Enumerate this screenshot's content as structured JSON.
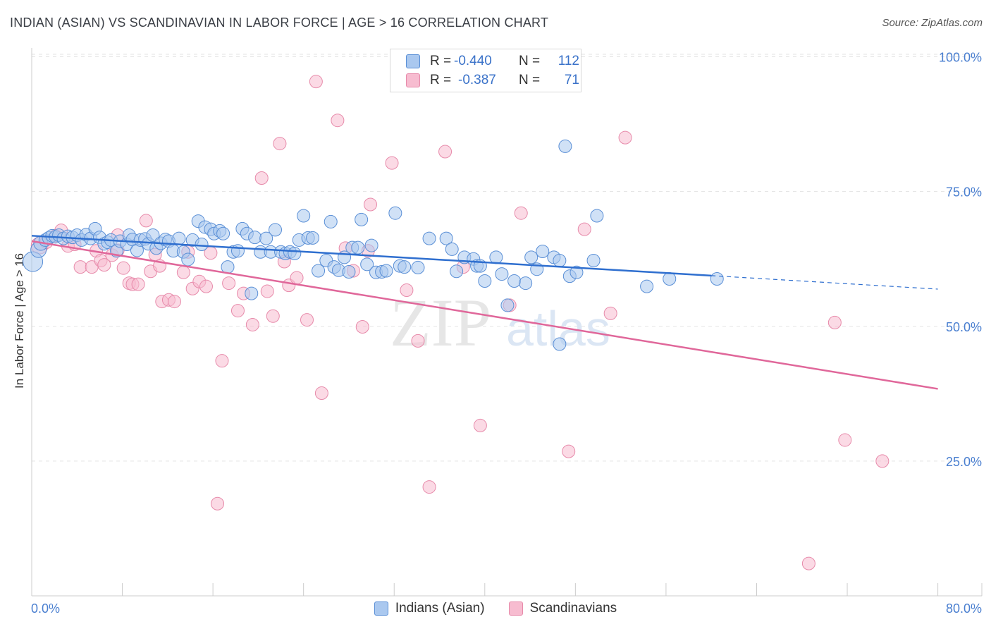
{
  "header": {
    "title": "INDIAN (ASIAN) VS SCANDINAVIAN IN LABOR FORCE | AGE > 16 CORRELATION CHART",
    "source": "Source: ZipAtlas.com"
  },
  "watermark": {
    "zip": "ZIP",
    "atlas": "atlas"
  },
  "legend": {
    "rows": [
      {
        "r_label": "R =",
        "r_value": "-0.440",
        "n_label": "N =",
        "n_value": "112"
      },
      {
        "r_label": "R =",
        "r_value": "-0.387",
        "n_label": "N =",
        "n_value": "71"
      }
    ],
    "bottom": [
      "Indians (Asian)",
      "Scandinavians"
    ]
  },
  "colors": {
    "indians_fill": "#aac8ef",
    "indians_stroke": "#5a8fd6",
    "indians_line": "#2f6fcf",
    "scand_fill": "#f7bcd0",
    "scand_stroke": "#e78aaa",
    "scand_line": "#e0679a",
    "tick_text": "#4a7fd0",
    "grid": "#e3e3e3"
  },
  "chart_data": {
    "type": "scatter",
    "title": "INDIAN (ASIAN) VS SCANDINAVIAN IN LABOR FORCE | AGE > 16 CORRELATION CHART",
    "xlabel": "",
    "ylabel": "In Labor Force | Age > 16",
    "xlim": [
      0,
      85
    ],
    "ylim": [
      0,
      103
    ],
    "x_tick_labels": [
      "0.0%",
      "80.0%"
    ],
    "y_ticks": [
      25,
      50,
      75,
      100
    ],
    "y_tick_labels": [
      "25.0%",
      "50.0%",
      "75.0%",
      "100.0%"
    ],
    "grid": "horizontal dashed",
    "legend_placement": "top-center",
    "series": [
      {
        "name": "Indians (Asian)",
        "r": -0.44,
        "n": 112,
        "trend": {
          "x": [
            0,
            60,
            80
          ],
          "y": [
            66.8,
            59.4,
            56.9
          ],
          "solid_until_x": 60
        },
        "points": [
          {
            "x": 0.1,
            "y": 62.0,
            "s": 14
          },
          {
            "x": 0.6,
            "y": 64.2,
            "s": 11
          },
          {
            "x": 0.8,
            "y": 65.4,
            "s": 10
          },
          {
            "x": 1.2,
            "y": 66.0,
            "s": 9
          },
          {
            "x": 1.5,
            "y": 66.4,
            "s": 9
          },
          {
            "x": 1.8,
            "y": 66.8,
            "s": 9
          },
          {
            "x": 2.1,
            "y": 66.6,
            "s": 9
          },
          {
            "x": 2.4,
            "y": 66.9,
            "s": 9
          },
          {
            "x": 2.8,
            "y": 66.3,
            "s": 9
          },
          {
            "x": 3.2,
            "y": 66.7,
            "s": 9
          },
          {
            "x": 3.6,
            "y": 66.5,
            "s": 9
          },
          {
            "x": 4.0,
            "y": 66.9,
            "s": 9
          },
          {
            "x": 4.4,
            "y": 66.0,
            "s": 9
          },
          {
            "x": 4.8,
            "y": 67.0,
            "s": 9
          },
          {
            "x": 5.2,
            "y": 66.3,
            "s": 9
          },
          {
            "x": 5.6,
            "y": 68.1,
            "s": 9
          },
          {
            "x": 6.0,
            "y": 66.5,
            "s": 9
          },
          {
            "x": 6.4,
            "y": 65.3,
            "s": 9
          },
          {
            "x": 6.7,
            "y": 65.6,
            "s": 9
          },
          {
            "x": 7.0,
            "y": 66.0,
            "s": 9
          },
          {
            "x": 7.5,
            "y": 64.0,
            "s": 9
          },
          {
            "x": 7.8,
            "y": 65.8,
            "s": 9
          },
          {
            "x": 8.4,
            "y": 65.2,
            "s": 9
          },
          {
            "x": 8.6,
            "y": 66.9,
            "s": 9
          },
          {
            "x": 8.9,
            "y": 66.1,
            "s": 9
          },
          {
            "x": 9.3,
            "y": 64.1,
            "s": 9
          },
          {
            "x": 9.6,
            "y": 66.0,
            "s": 9
          },
          {
            "x": 10.0,
            "y": 66.2,
            "s": 9
          },
          {
            "x": 10.3,
            "y": 65.3,
            "s": 9
          },
          {
            "x": 10.7,
            "y": 66.9,
            "s": 9
          },
          {
            "x": 11.0,
            "y": 64.5,
            "s": 9
          },
          {
            "x": 11.4,
            "y": 65.4,
            "s": 9
          },
          {
            "x": 11.8,
            "y": 66.1,
            "s": 9
          },
          {
            "x": 12.1,
            "y": 65.8,
            "s": 9
          },
          {
            "x": 12.5,
            "y": 64.0,
            "s": 9
          },
          {
            "x": 13.0,
            "y": 66.3,
            "s": 9
          },
          {
            "x": 13.4,
            "y": 63.8,
            "s": 9
          },
          {
            "x": 13.8,
            "y": 62.4,
            "s": 9
          },
          {
            "x": 14.2,
            "y": 66.0,
            "s": 9
          },
          {
            "x": 14.7,
            "y": 69.5,
            "s": 9
          },
          {
            "x": 15.0,
            "y": 65.2,
            "s": 9
          },
          {
            "x": 15.3,
            "y": 68.4,
            "s": 9
          },
          {
            "x": 15.8,
            "y": 68.0,
            "s": 9
          },
          {
            "x": 16.1,
            "y": 67.2,
            "s": 9
          },
          {
            "x": 16.6,
            "y": 67.7,
            "s": 9
          },
          {
            "x": 16.9,
            "y": 67.2,
            "s": 9
          },
          {
            "x": 17.3,
            "y": 61.0,
            "s": 9
          },
          {
            "x": 17.8,
            "y": 63.8,
            "s": 9
          },
          {
            "x": 18.2,
            "y": 64.0,
            "s": 9
          },
          {
            "x": 18.6,
            "y": 68.1,
            "s": 9
          },
          {
            "x": 19.0,
            "y": 67.2,
            "s": 9
          },
          {
            "x": 19.4,
            "y": 56.1,
            "s": 9
          },
          {
            "x": 19.7,
            "y": 66.5,
            "s": 9
          },
          {
            "x": 20.2,
            "y": 63.8,
            "s": 9
          },
          {
            "x": 20.7,
            "y": 66.3,
            "s": 9
          },
          {
            "x": 21.1,
            "y": 63.8,
            "s": 9
          },
          {
            "x": 21.5,
            "y": 67.9,
            "s": 9
          },
          {
            "x": 22.0,
            "y": 63.8,
            "s": 9
          },
          {
            "x": 22.4,
            "y": 63.5,
            "s": 9
          },
          {
            "x": 22.8,
            "y": 63.8,
            "s": 9
          },
          {
            "x": 23.2,
            "y": 63.5,
            "s": 9
          },
          {
            "x": 23.6,
            "y": 66.0,
            "s": 9
          },
          {
            "x": 24.0,
            "y": 70.5,
            "s": 9
          },
          {
            "x": 24.4,
            "y": 66.4,
            "s": 9
          },
          {
            "x": 24.8,
            "y": 66.4,
            "s": 9
          },
          {
            "x": 25.3,
            "y": 60.3,
            "s": 9
          },
          {
            "x": 26.0,
            "y": 62.2,
            "s": 9
          },
          {
            "x": 26.4,
            "y": 69.4,
            "s": 9
          },
          {
            "x": 26.7,
            "y": 61.0,
            "s": 9
          },
          {
            "x": 27.1,
            "y": 60.4,
            "s": 9
          },
          {
            "x": 27.6,
            "y": 62.8,
            "s": 9
          },
          {
            "x": 28.0,
            "y": 60.1,
            "s": 9
          },
          {
            "x": 28.3,
            "y": 64.6,
            "s": 9
          },
          {
            "x": 28.8,
            "y": 64.6,
            "s": 9
          },
          {
            "x": 29.1,
            "y": 69.8,
            "s": 9
          },
          {
            "x": 29.6,
            "y": 61.5,
            "s": 9
          },
          {
            "x": 30.0,
            "y": 65.0,
            "s": 9
          },
          {
            "x": 30.4,
            "y": 60.0,
            "s": 9
          },
          {
            "x": 30.9,
            "y": 60.1,
            "s": 9
          },
          {
            "x": 31.3,
            "y": 60.3,
            "s": 9
          },
          {
            "x": 32.1,
            "y": 71.0,
            "s": 9
          },
          {
            "x": 32.5,
            "y": 61.2,
            "s": 9
          },
          {
            "x": 32.9,
            "y": 61.0,
            "s": 9
          },
          {
            "x": 34.1,
            "y": 60.9,
            "s": 9
          },
          {
            "x": 35.1,
            "y": 66.3,
            "s": 9
          },
          {
            "x": 36.6,
            "y": 66.3,
            "s": 9
          },
          {
            "x": 37.1,
            "y": 64.3,
            "s": 9
          },
          {
            "x": 37.5,
            "y": 60.2,
            "s": 9
          },
          {
            "x": 38.2,
            "y": 62.8,
            "s": 9
          },
          {
            "x": 39.0,
            "y": 62.5,
            "s": 9
          },
          {
            "x": 39.3,
            "y": 61.2,
            "s": 9
          },
          {
            "x": 39.6,
            "y": 61.2,
            "s": 9
          },
          {
            "x": 40.0,
            "y": 58.4,
            "s": 9
          },
          {
            "x": 41.0,
            "y": 62.8,
            "s": 9
          },
          {
            "x": 41.5,
            "y": 59.7,
            "s": 9
          },
          {
            "x": 42.0,
            "y": 53.9,
            "s": 9
          },
          {
            "x": 42.6,
            "y": 58.4,
            "s": 9
          },
          {
            "x": 43.6,
            "y": 58.0,
            "s": 9
          },
          {
            "x": 44.1,
            "y": 62.8,
            "s": 9
          },
          {
            "x": 44.6,
            "y": 60.6,
            "s": 9
          },
          {
            "x": 45.1,
            "y": 63.9,
            "s": 9
          },
          {
            "x": 46.1,
            "y": 62.8,
            "s": 9
          },
          {
            "x": 46.6,
            "y": 62.2,
            "s": 9
          },
          {
            "x": 46.6,
            "y": 46.7,
            "s": 9
          },
          {
            "x": 47.1,
            "y": 83.4,
            "s": 9
          },
          {
            "x": 47.5,
            "y": 59.3,
            "s": 9
          },
          {
            "x": 48.1,
            "y": 60.0,
            "s": 9
          },
          {
            "x": 49.6,
            "y": 62.2,
            "s": 9
          },
          {
            "x": 49.9,
            "y": 70.5,
            "s": 9
          },
          {
            "x": 54.3,
            "y": 57.4,
            "s": 9
          },
          {
            "x": 56.3,
            "y": 58.8,
            "s": 9
          },
          {
            "x": 60.5,
            "y": 58.8,
            "s": 9
          }
        ]
      },
      {
        "name": "Scandinavians",
        "r": -0.387,
        "n": 71,
        "trend": {
          "x": [
            0,
            80
          ],
          "y": [
            65.8,
            38.4
          ]
        },
        "points": [
          {
            "x": 0.7,
            "y": 65.0,
            "s": 12
          },
          {
            "x": 1.3,
            "y": 65.6,
            "s": 9
          },
          {
            "x": 2.1,
            "y": 66.8,
            "s": 9
          },
          {
            "x": 2.6,
            "y": 67.8,
            "s": 9
          },
          {
            "x": 3.2,
            "y": 64.9,
            "s": 9
          },
          {
            "x": 3.8,
            "y": 65.2,
            "s": 9
          },
          {
            "x": 4.3,
            "y": 61.0,
            "s": 9
          },
          {
            "x": 5.3,
            "y": 61.0,
            "s": 9
          },
          {
            "x": 5.7,
            "y": 64.0,
            "s": 9
          },
          {
            "x": 6.1,
            "y": 62.2,
            "s": 9
          },
          {
            "x": 6.4,
            "y": 61.4,
            "s": 9
          },
          {
            "x": 7.1,
            "y": 63.2,
            "s": 9
          },
          {
            "x": 7.6,
            "y": 64.1,
            "s": 9
          },
          {
            "x": 7.6,
            "y": 66.9,
            "s": 9
          },
          {
            "x": 8.1,
            "y": 60.8,
            "s": 9
          },
          {
            "x": 8.6,
            "y": 58.0,
            "s": 9
          },
          {
            "x": 8.9,
            "y": 57.8,
            "s": 9
          },
          {
            "x": 9.4,
            "y": 57.8,
            "s": 9
          },
          {
            "x": 10.1,
            "y": 69.6,
            "s": 9
          },
          {
            "x": 10.5,
            "y": 60.2,
            "s": 9
          },
          {
            "x": 10.9,
            "y": 63.3,
            "s": 9
          },
          {
            "x": 11.3,
            "y": 61.2,
            "s": 9
          },
          {
            "x": 11.5,
            "y": 54.6,
            "s": 9
          },
          {
            "x": 12.1,
            "y": 54.9,
            "s": 9
          },
          {
            "x": 12.6,
            "y": 54.6,
            "s": 9
          },
          {
            "x": 13.4,
            "y": 60.0,
            "s": 9
          },
          {
            "x": 13.8,
            "y": 63.8,
            "s": 9
          },
          {
            "x": 14.2,
            "y": 57.0,
            "s": 9
          },
          {
            "x": 14.8,
            "y": 58.3,
            "s": 9
          },
          {
            "x": 15.4,
            "y": 57.4,
            "s": 9
          },
          {
            "x": 15.8,
            "y": 63.6,
            "s": 9
          },
          {
            "x": 16.4,
            "y": 17.1,
            "s": 9
          },
          {
            "x": 16.8,
            "y": 43.6,
            "s": 9
          },
          {
            "x": 17.4,
            "y": 58.0,
            "s": 9
          },
          {
            "x": 18.2,
            "y": 52.9,
            "s": 9
          },
          {
            "x": 18.7,
            "y": 56.1,
            "s": 9
          },
          {
            "x": 19.5,
            "y": 50.3,
            "s": 9
          },
          {
            "x": 20.3,
            "y": 77.5,
            "s": 9
          },
          {
            "x": 20.8,
            "y": 56.5,
            "s": 9
          },
          {
            "x": 21.3,
            "y": 51.9,
            "s": 9
          },
          {
            "x": 21.9,
            "y": 83.9,
            "s": 9
          },
          {
            "x": 22.3,
            "y": 62.0,
            "s": 9
          },
          {
            "x": 22.7,
            "y": 57.6,
            "s": 9
          },
          {
            "x": 23.4,
            "y": 59.0,
            "s": 9
          },
          {
            "x": 24.3,
            "y": 51.2,
            "s": 9
          },
          {
            "x": 25.1,
            "y": 95.4,
            "s": 9
          },
          {
            "x": 25.6,
            "y": 37.6,
            "s": 9
          },
          {
            "x": 27.0,
            "y": 88.2,
            "s": 9
          },
          {
            "x": 27.7,
            "y": 64.5,
            "s": 9
          },
          {
            "x": 28.4,
            "y": 60.3,
            "s": 9
          },
          {
            "x": 29.2,
            "y": 49.9,
            "s": 9
          },
          {
            "x": 29.7,
            "y": 64.0,
            "s": 9
          },
          {
            "x": 29.9,
            "y": 72.6,
            "s": 9
          },
          {
            "x": 31.8,
            "y": 80.3,
            "s": 9
          },
          {
            "x": 33.1,
            "y": 56.7,
            "s": 9
          },
          {
            "x": 34.1,
            "y": 47.3,
            "s": 9
          },
          {
            "x": 35.1,
            "y": 20.2,
            "s": 9
          },
          {
            "x": 36.5,
            "y": 82.4,
            "s": 9
          },
          {
            "x": 38.1,
            "y": 61.0,
            "s": 9
          },
          {
            "x": 39.6,
            "y": 31.6,
            "s": 9
          },
          {
            "x": 42.2,
            "y": 53.9,
            "s": 9
          },
          {
            "x": 43.2,
            "y": 71.0,
            "s": 9
          },
          {
            "x": 47.4,
            "y": 26.8,
            "s": 9
          },
          {
            "x": 48.8,
            "y": 68.0,
            "s": 9
          },
          {
            "x": 51.1,
            "y": 52.4,
            "s": 9
          },
          {
            "x": 52.4,
            "y": 85.0,
            "s": 9
          },
          {
            "x": 68.6,
            "y": 6.0,
            "s": 9
          },
          {
            "x": 70.9,
            "y": 50.7,
            "s": 9
          },
          {
            "x": 71.8,
            "y": 28.9,
            "s": 9
          },
          {
            "x": 75.1,
            "y": 25.0,
            "s": 9
          }
        ]
      }
    ]
  }
}
